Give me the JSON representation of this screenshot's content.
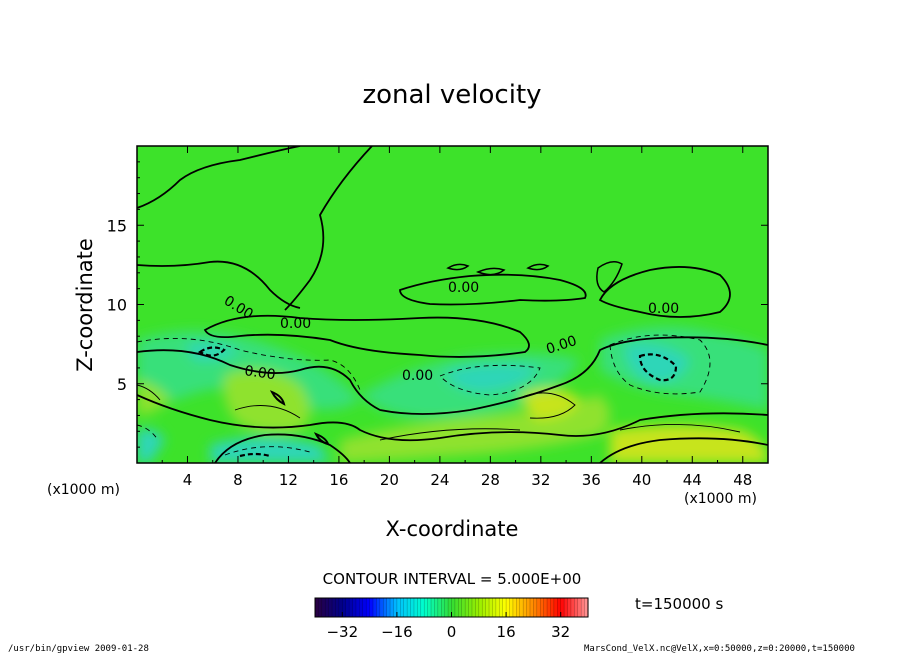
{
  "chart_data": {
    "type": "heatmap",
    "title": "zonal velocity",
    "xlabel": "X-coordinate",
    "ylabel": "Z-coordinate",
    "x_unit": "(x1000 m)",
    "y_unit": "(x1000 m)",
    "xlim": [
      0,
      50
    ],
    "ylim": [
      0,
      20
    ],
    "x_ticks": [
      4,
      8,
      12,
      16,
      20,
      24,
      28,
      32,
      36,
      40,
      44,
      48
    ],
    "y_ticks": [
      5,
      10,
      15
    ],
    "contour_label": "0.00",
    "contour_interval": "CONTOUR INTERVAL = 5.000E+00",
    "time_label": "t=150000 s",
    "colorbar": {
      "min": -40,
      "max": 40,
      "ticks": [
        -32,
        -16,
        0,
        16,
        32
      ],
      "colors": [
        "#2a0040",
        "#00008b",
        "#0000ff",
        "#00bfff",
        "#00ffcc",
        "#33dd33",
        "#99ee00",
        "#ffff00",
        "#ff8800",
        "#ff0000",
        "#ff9999"
      ]
    },
    "field_colors": {
      "background": "#3de22a",
      "weak_negative": "#38e07a",
      "negative": "#2fd6b8",
      "weak_positive": "#8fe22f",
      "positive": "#c7e41a"
    }
  },
  "footer": {
    "left": "/usr/bin/gpview   2009-01-28",
    "right": "MarsCond_VelX.nc@VelX,x=0:50000,z=0:20000,t=150000"
  }
}
